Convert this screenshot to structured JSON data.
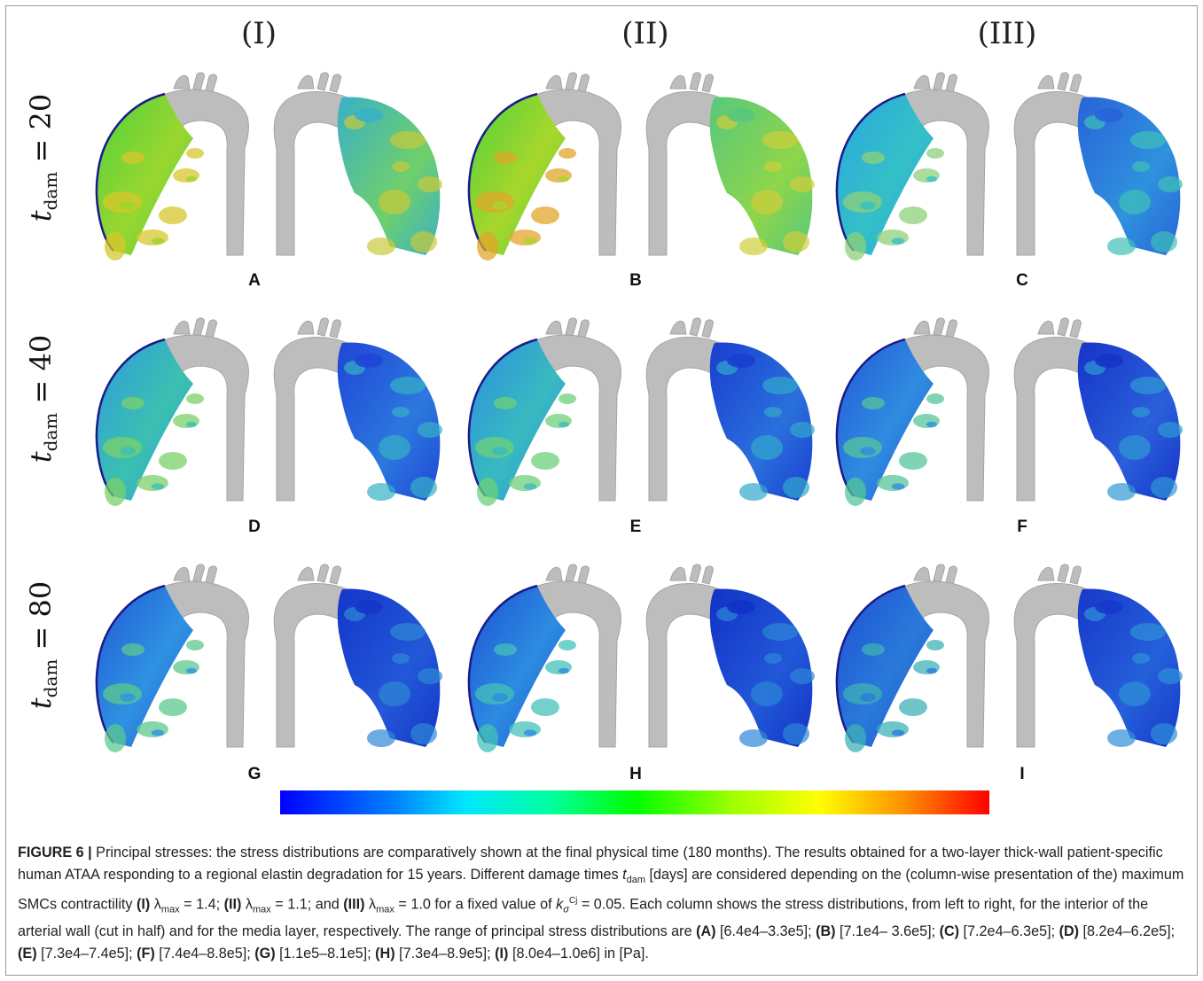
{
  "columns": [
    "(I)",
    "(II)",
    "(III)"
  ],
  "rows": [
    {
      "t_symbol": "t",
      "t_sub": "dam",
      "t_value": "= 20"
    },
    {
      "t_symbol": "t",
      "t_sub": "dam",
      "t_value": "= 40"
    },
    {
      "t_symbol": "t",
      "t_sub": "dam",
      "t_value": "= 80"
    }
  ],
  "panels": [
    "A",
    "B",
    "C",
    "D",
    "E",
    "F",
    "G",
    "H",
    "I"
  ],
  "panel_colors": {
    "A": {
      "left": [
        "#4dd23a",
        "#9ad630",
        "#d8c52b"
      ],
      "right": [
        "#3ab0c7",
        "#6fd06a",
        "#c9c93a"
      ]
    },
    "B": {
      "left": [
        "#4dd23a",
        "#a8d62c",
        "#e0a52a"
      ],
      "right": [
        "#58c87c",
        "#8ed64a",
        "#d0cd3b"
      ]
    },
    "C": {
      "left": [
        "#2aa6e0",
        "#34c0c7",
        "#8ed07a"
      ],
      "right": [
        "#2a63d8",
        "#2e92de",
        "#3fc0b8"
      ]
    },
    "D": {
      "left": [
        "#2e9bdf",
        "#3bc0b0",
        "#7bd06a"
      ],
      "right": [
        "#1f46d6",
        "#2c78de",
        "#36b1c6"
      ]
    },
    "E": {
      "left": [
        "#2c8ddf",
        "#38bac0",
        "#6cd07a"
      ],
      "right": [
        "#1a3ed0",
        "#2a70dc",
        "#32a8cc"
      ]
    },
    "F": {
      "left": [
        "#2357d8",
        "#2f8ce0",
        "#56c69a"
      ],
      "right": [
        "#1634c9",
        "#2a60da",
        "#2f98d4"
      ]
    },
    "G": {
      "left": [
        "#1f58d6",
        "#2f92e2",
        "#5cc88e"
      ],
      "right": [
        "#1436c8",
        "#2358d8",
        "#2f88d6"
      ]
    },
    "H": {
      "left": [
        "#1c50d6",
        "#2c8ce0",
        "#44c0b8"
      ],
      "right": [
        "#1232c6",
        "#2258d8",
        "#2c86d8"
      ]
    },
    "I": {
      "left": [
        "#1d4fd6",
        "#2a7ad9",
        "#3fb2b6"
      ],
      "right": [
        "#1838ca",
        "#2560da",
        "#2f90d8"
      ]
    }
  },
  "colorbar": {
    "stops": [
      "#0000ff",
      "#0080ff",
      "#00e6ff",
      "#00ffa0",
      "#00ff00",
      "#a0ff00",
      "#ffff00",
      "#ff9000",
      "#ff0000"
    ]
  },
  "caption": {
    "figure_label": "FIGURE 6 |",
    "p1": " Principal stresses: the stress distributions are comparatively shown at the final physical time (180 months). The results obtained for a two-layer thick-wall patient-specific human ATAA responding to a regional elastin degradation for 15 years. Different damage times ",
    "t_sym": "t",
    "t_sub": "dam",
    "p2": " [days] are considered depending on the (column-wise presentation of the) maximum SMCs contractility ",
    "I_lab": "(I)",
    "lam_I": " λ",
    "max_sub": "max",
    "lam_I_val": " = 1.4; ",
    "II_lab": "(II)",
    "lam_II": " λ",
    "lam_II_val": " = 1.1; and ",
    "III_lab": "(III)",
    "lam_III": " λ",
    "lam_III_val": " = 1.0 for a fixed value of ",
    "k_sym": "k",
    "k_sub": "σ",
    "k_sup": "Cj",
    "k_val": " = 0.05. Each column shows the stress distributions, from left to right, for the interior of the arterial wall (cut in half) and for the media layer, respectively. The range of principal stress distributions are ",
    "ranges": [
      {
        "label": "(A)",
        "text": " [6.4e4–3.3e5]; "
      },
      {
        "label": "(B)",
        "text": " [7.1e4– 3.6e5]; "
      },
      {
        "label": "(C)",
        "text": " [7.2e4–6.3e5]; "
      },
      {
        "label": "(D)",
        "text": " [8.2e4–6.2e5]; "
      },
      {
        "label": "(E)",
        "text": " [7.3e4–7.4e5]; "
      },
      {
        "label": "(F)",
        "text": " [7.4e4–8.8e5]; "
      },
      {
        "label": "(G)",
        "text": " [1.1e5–8.1e5]; "
      },
      {
        "label": "(H)",
        "text": " [7.3e4–8.9e5]; "
      },
      {
        "label": "(I)",
        "text": " [8.0e4–1.0e6] in [Pa]."
      }
    ]
  }
}
